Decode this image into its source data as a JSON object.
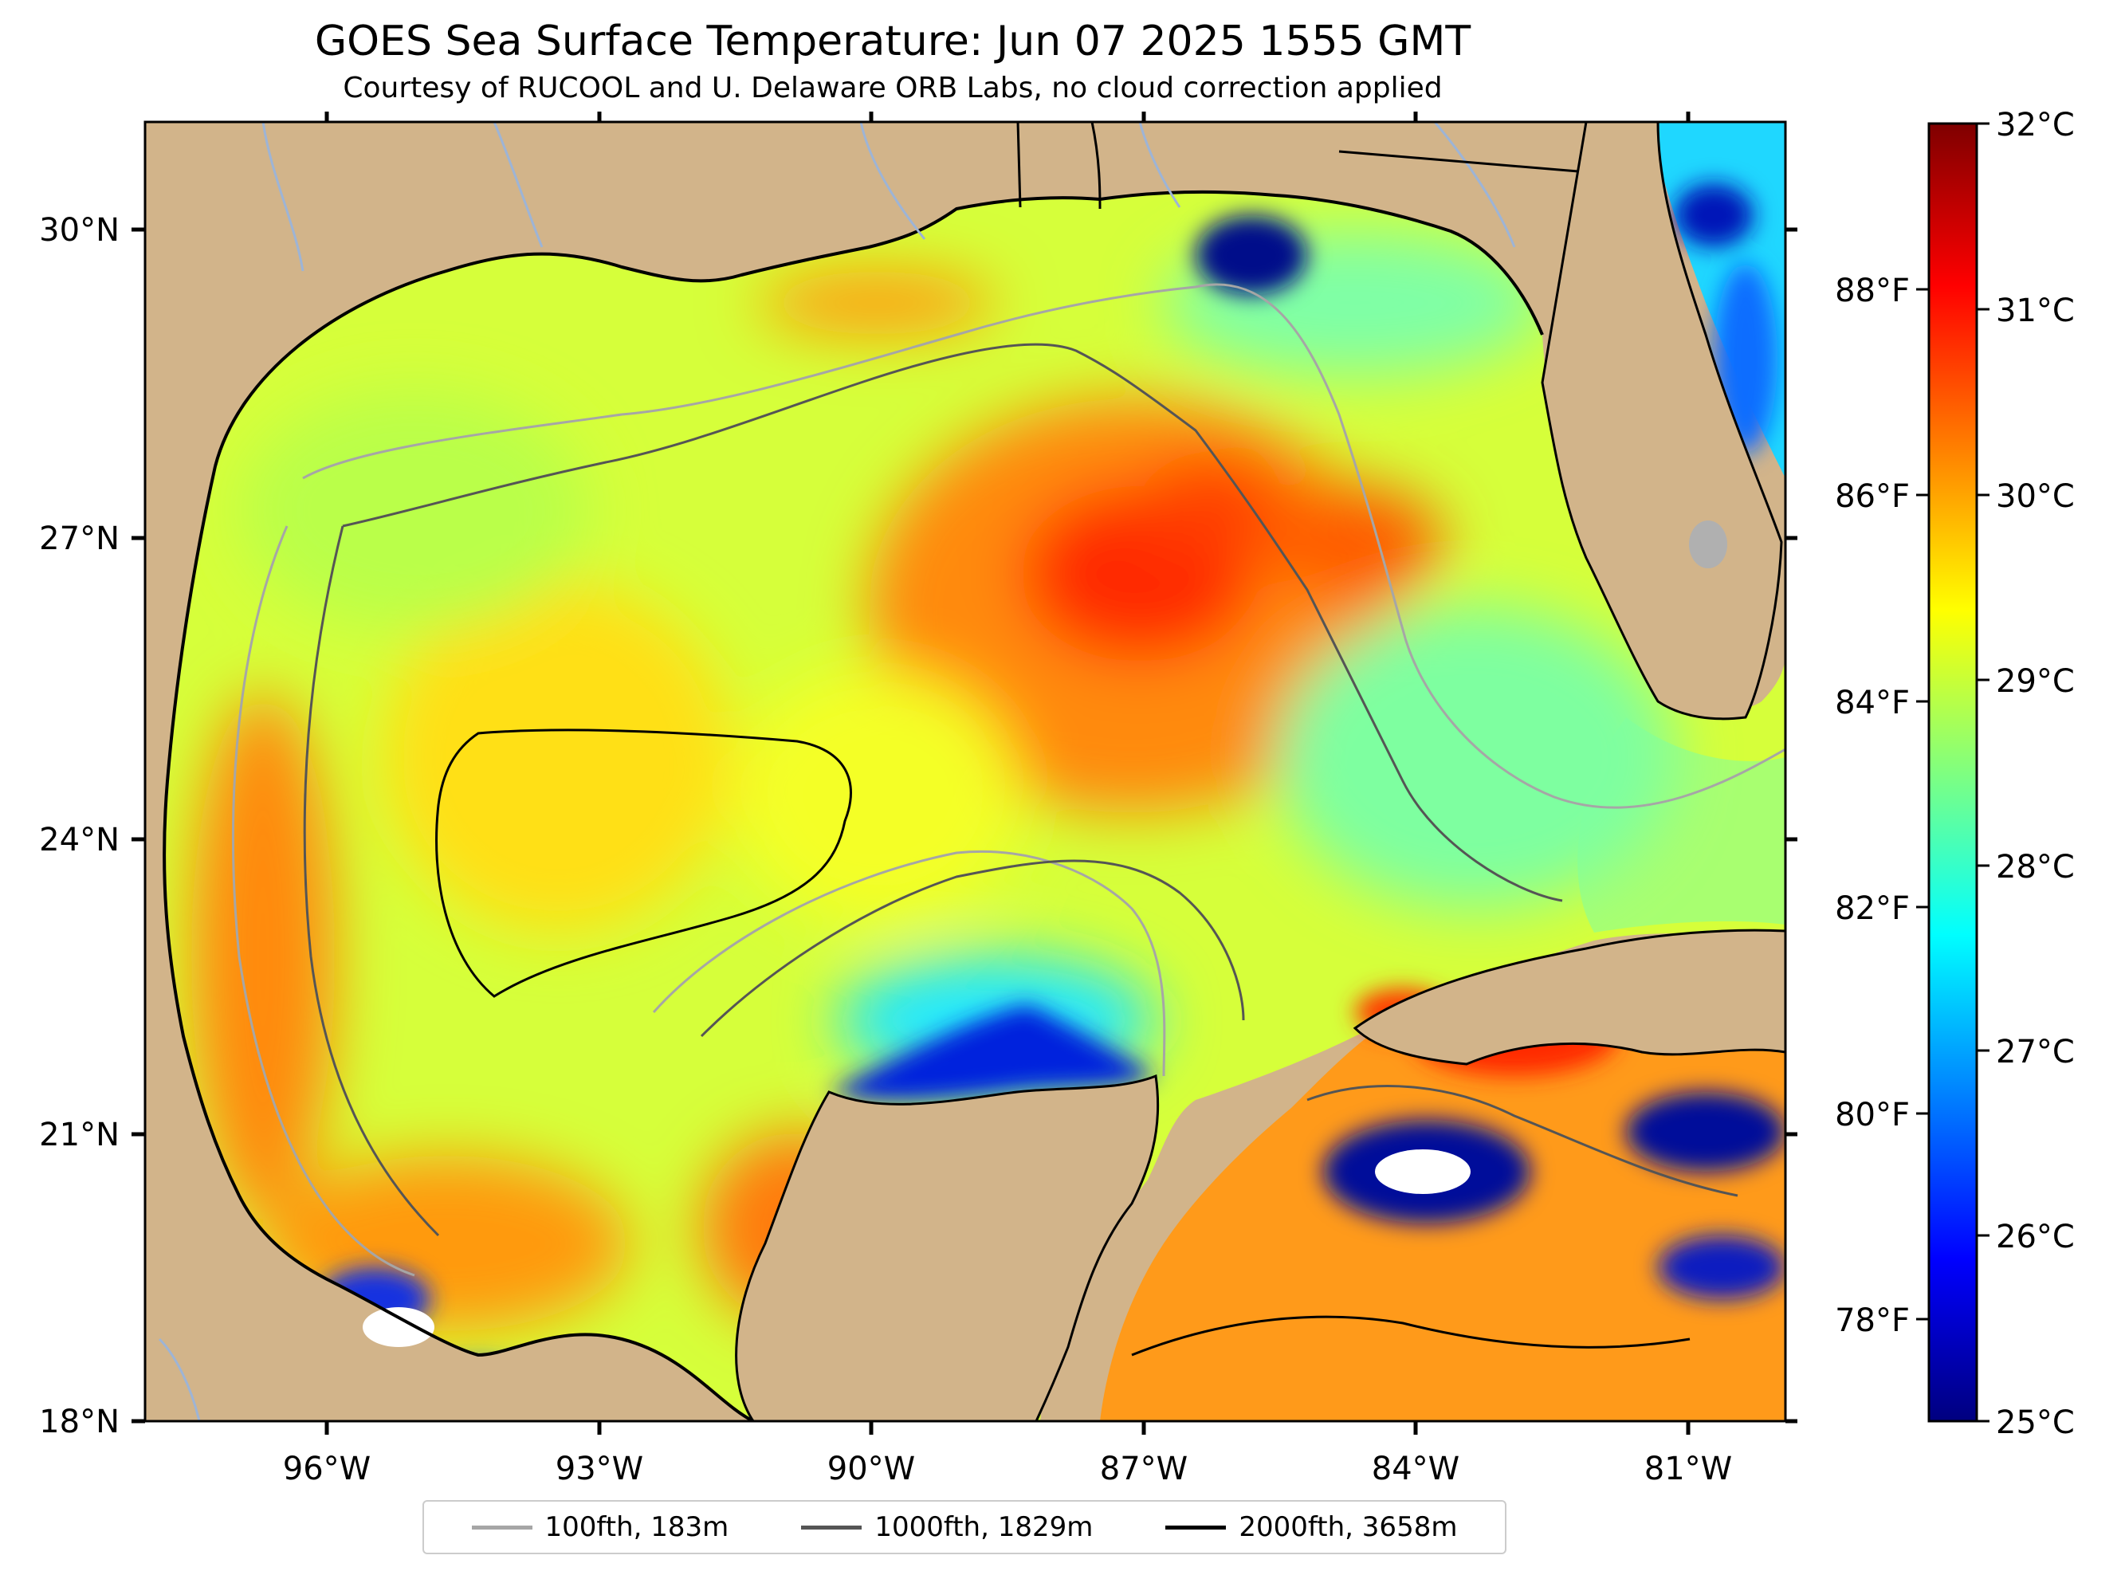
{
  "title": "GOES Sea Surface Temperature: Jun 07 2025 1555 GMT",
  "subtitle": "Courtesy of RUCOOL and U. Delaware ORB Labs, no cloud correction applied",
  "map": {
    "lon_labels": [
      "96°W",
      "93°W",
      "90°W",
      "87°W",
      "84°W",
      "81°W"
    ],
    "lat_labels": [
      "30°N",
      "27°N",
      "24°N",
      "21°N",
      "18°N"
    ],
    "colors": {
      "land": "#d2b48a",
      "coast": "#000000",
      "rivers": "#9db4d6"
    }
  },
  "colorbar": {
    "celsius_labels": [
      "32°C",
      "31°C",
      "30°C",
      "29°C",
      "28°C",
      "27°C",
      "26°C",
      "25°C"
    ],
    "fahrenheit_labels": [
      "88°F",
      "86°F",
      "84°F",
      "82°F",
      "80°F",
      "78°F"
    ],
    "range_c": [
      25,
      32
    ],
    "colormap": "jet"
  },
  "legend": {
    "items": [
      {
        "label": "100fth, 183m",
        "color": "#a6a6a6"
      },
      {
        "label": "1000fth, 1829m",
        "color": "#555555"
      },
      {
        "label": "2000fth, 3658m",
        "color": "#000000"
      }
    ]
  }
}
